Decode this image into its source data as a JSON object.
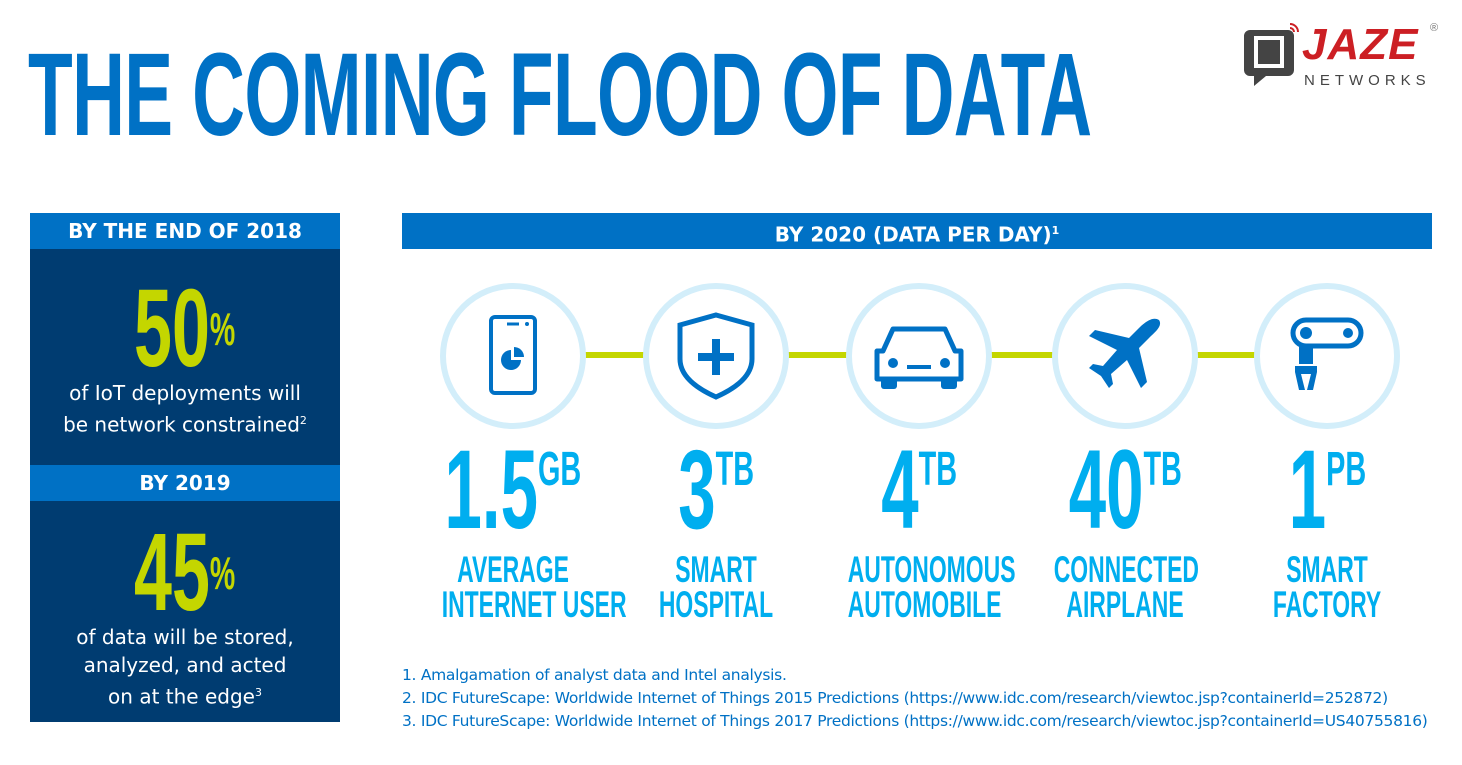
{
  "title": "THE COMING FLOOD OF DATA",
  "logo": {
    "name": "JAZE",
    "sub": "NETWORKS",
    "mark": "®"
  },
  "colors": {
    "blue": "#0071c5",
    "navy": "#003c71",
    "lime": "#c4d600",
    "cyan": "#00aeef",
    "ring": "#d3eefa",
    "logo_red": "#cc1f24"
  },
  "left": {
    "block1": {
      "header": "BY THE END OF 2018",
      "value": "50",
      "unit": "%",
      "line1": "of IoT deployments will",
      "line2": "be network constrained",
      "ref": "2"
    },
    "block2": {
      "header": "BY 2019",
      "value": "45",
      "unit": "%",
      "line1": "of data will be stored,",
      "line2": "analyzed, and acted",
      "line3": "on at the edge",
      "ref": "3"
    }
  },
  "right": {
    "header": "BY 2020  (DATA PER DAY)",
    "header_ref": "1",
    "items": [
      {
        "icon": "smartphone-chart-icon",
        "value": "1.5",
        "unit": "GB",
        "l1": "AVERAGE",
        "l2": "INTERNET USER"
      },
      {
        "icon": "shield-plus-icon",
        "value": "3",
        "unit": "TB",
        "l1": "SMART",
        "l2": "HOSPITAL"
      },
      {
        "icon": "car-icon",
        "value": "4",
        "unit": "TB",
        "l1": "AUTONOMOUS",
        "l2": "AUTOMOBILE"
      },
      {
        "icon": "airplane-icon",
        "value": "40",
        "unit": "TB",
        "l1": "CONNECTED",
        "l2": "AIRPLANE"
      },
      {
        "icon": "robot-arm-icon",
        "value": "1",
        "unit": "PB",
        "l1": "SMART",
        "l2": "FACTORY"
      }
    ]
  },
  "footnotes": [
    "1. Amalgamation of analyst data and Intel analysis.",
    "2. IDC FutureScape: Worldwide Internet of Things 2015 Predictions (https://www.idc.com/research/viewtoc.jsp?containerId=252872)",
    "3. IDC FutureScape: Worldwide Internet of Things 2017 Predictions (https://www.idc.com/research/viewtoc.jsp?containerId=US40755816)"
  ]
}
